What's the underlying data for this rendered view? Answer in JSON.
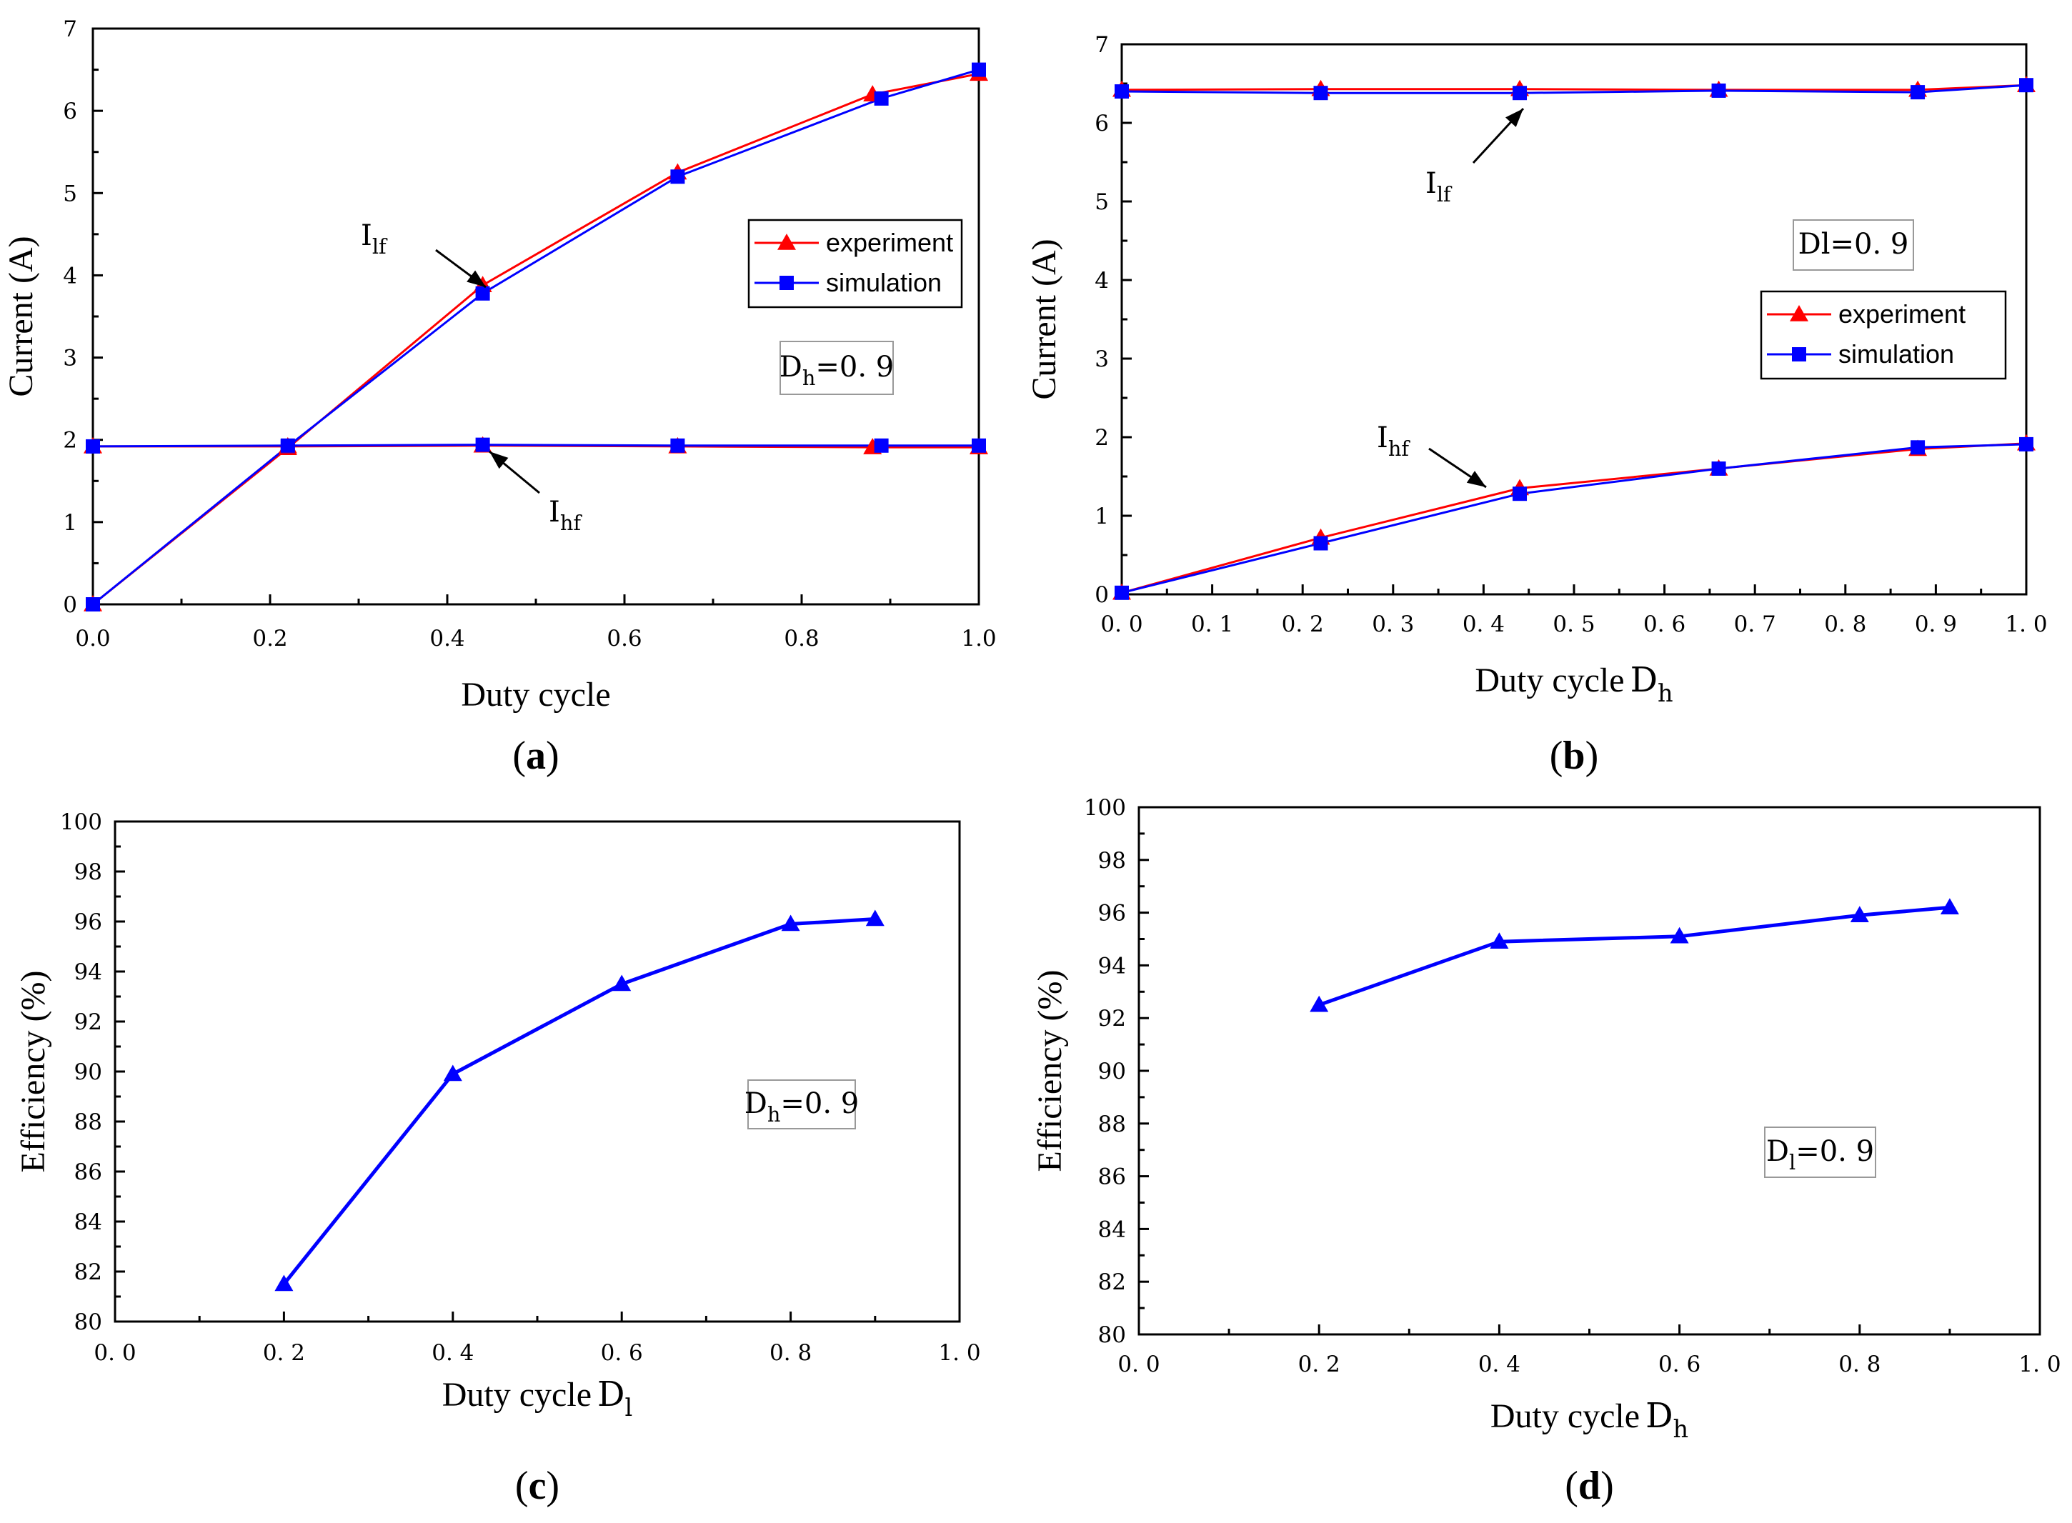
{
  "figure": {
    "panel_labels": [
      "a",
      "b",
      "c",
      "d"
    ]
  },
  "colors": {
    "experiment": "#ff0000",
    "simulation": "#0000ff",
    "efficiency": "#0000ff"
  },
  "chart_data": [
    {
      "id": "a",
      "type": "line",
      "xlabel": "Duty cycle",
      "ylabel": "Current (A)",
      "xlim": [
        0,
        1.0
      ],
      "ylim": [
        0,
        7
      ],
      "xticks": [
        "0.0",
        "0.2",
        "0.4",
        "0.6",
        "0.8",
        "1.0"
      ],
      "xtick_values": [
        0,
        0.2,
        0.4,
        0.6,
        0.8,
        1.0
      ],
      "yticks": [
        "0",
        "1",
        "2",
        "3",
        "4",
        "5",
        "6",
        "7"
      ],
      "ytick_values": [
        0,
        1,
        2,
        3,
        4,
        5,
        6,
        7
      ],
      "legend": {
        "position": "upper-right",
        "entries": [
          "experiment",
          "simulation"
        ]
      },
      "note": {
        "main": "D",
        "sub": "h",
        "rest": "=0. 9"
      },
      "annotations": [
        {
          "main": "I",
          "sub": "lf"
        },
        {
          "main": "I",
          "sub": "hf"
        }
      ],
      "series": [
        {
          "name": "experiment I_lf",
          "kind": "experiment",
          "x": [
            0,
            0.22,
            0.44,
            0.66,
            0.88,
            1.0
          ],
          "y": [
            0,
            1.9,
            3.88,
            5.25,
            6.2,
            6.45
          ]
        },
        {
          "name": "simulation I_lf",
          "kind": "simulation",
          "x": [
            0,
            0.22,
            0.44,
            0.66,
            0.89,
            1.0
          ],
          "y": [
            0,
            1.92,
            3.78,
            5.2,
            6.15,
            6.5
          ]
        },
        {
          "name": "experiment I_hf",
          "kind": "experiment",
          "x": [
            0,
            0.22,
            0.44,
            0.66,
            0.88,
            1.0
          ],
          "y": [
            1.92,
            1.92,
            1.93,
            1.92,
            1.91,
            1.91
          ]
        },
        {
          "name": "simulation I_hf",
          "kind": "simulation",
          "x": [
            0,
            0.22,
            0.44,
            0.66,
            0.89,
            1.0
          ],
          "y": [
            1.92,
            1.93,
            1.94,
            1.93,
            1.93,
            1.93
          ]
        }
      ]
    },
    {
      "id": "b",
      "type": "line",
      "xlabel": "Duty cycle",
      "xlabel_var": {
        "main": "D",
        "sub": "h"
      },
      "ylabel": "Current (A)",
      "xlim": [
        0,
        1.0
      ],
      "ylim": [
        0,
        7
      ],
      "xticks": [
        "0. 0",
        "0. 1",
        "0. 2",
        "0. 3",
        "0. 4",
        "0. 5",
        "0. 6",
        "0. 7",
        "0. 8",
        "0. 9",
        "1. 0"
      ],
      "xtick_values": [
        0,
        0.1,
        0.2,
        0.3,
        0.4,
        0.5,
        0.6,
        0.7,
        0.8,
        0.9,
        1.0
      ],
      "yticks": [
        "0",
        "1",
        "2",
        "3",
        "4",
        "5",
        "6",
        "7"
      ],
      "ytick_values": [
        0,
        1,
        2,
        3,
        4,
        5,
        6,
        7
      ],
      "legend": {
        "position": "center-right",
        "entries": [
          "experiment",
          "simulation"
        ]
      },
      "note": {
        "main": "Dl=0. 9",
        "sub": "",
        "rest": ""
      },
      "annotations": [
        {
          "main": "I",
          "sub": "lf"
        },
        {
          "main": "I",
          "sub": "hf"
        }
      ],
      "series": [
        {
          "name": "experiment I_lf",
          "kind": "experiment",
          "x": [
            0,
            0.22,
            0.44,
            0.66,
            0.88,
            1.0
          ],
          "y": [
            6.42,
            6.43,
            6.43,
            6.42,
            6.42,
            6.48
          ]
        },
        {
          "name": "simulation I_lf",
          "kind": "simulation",
          "x": [
            0,
            0.22,
            0.44,
            0.66,
            0.88,
            1.0
          ],
          "y": [
            6.4,
            6.38,
            6.38,
            6.41,
            6.39,
            6.48
          ]
        },
        {
          "name": "experiment I_hf",
          "kind": "experiment",
          "x": [
            0,
            0.22,
            0.44,
            0.66,
            0.88,
            1.0
          ],
          "y": [
            0.02,
            0.72,
            1.35,
            1.6,
            1.85,
            1.92
          ]
        },
        {
          "name": "simulation I_hf",
          "kind": "simulation",
          "x": [
            0,
            0.22,
            0.44,
            0.66,
            0.88,
            1.0
          ],
          "y": [
            0.02,
            0.65,
            1.28,
            1.6,
            1.87,
            1.91
          ]
        }
      ]
    },
    {
      "id": "c",
      "type": "line",
      "xlabel": "Duty cycle",
      "xlabel_var": {
        "main": "D",
        "sub": "l"
      },
      "ylabel": "Efficiency (%)",
      "xlim": [
        0,
        1.0
      ],
      "ylim": [
        80,
        100
      ],
      "xticks": [
        "0. 0",
        "0. 2",
        "0. 4",
        "0. 6",
        "0. 8",
        "1. 0"
      ],
      "xtick_values": [
        0,
        0.2,
        0.4,
        0.6,
        0.8,
        1.0
      ],
      "yticks": [
        "80",
        "82",
        "84",
        "86",
        "88",
        "90",
        "92",
        "94",
        "96",
        "98",
        "100"
      ],
      "ytick_values": [
        80,
        82,
        84,
        86,
        88,
        90,
        92,
        94,
        96,
        98,
        100
      ],
      "note": {
        "main": "D",
        "sub": "h",
        "rest": "=0. 9"
      },
      "series": [
        {
          "name": "efficiency",
          "kind": "efficiency",
          "x": [
            0.2,
            0.4,
            0.6,
            0.8,
            0.9
          ],
          "y": [
            81.5,
            89.9,
            93.5,
            95.9,
            96.1
          ]
        }
      ]
    },
    {
      "id": "d",
      "type": "line",
      "xlabel": "Duty cycle",
      "xlabel_var": {
        "main": "D",
        "sub": "h"
      },
      "ylabel": "Efficiency (%)",
      "xlim": [
        0,
        1.0
      ],
      "ylim": [
        80,
        100
      ],
      "xticks": [
        "0. 0",
        "0. 2",
        "0. 4",
        "0. 6",
        "0. 8",
        "1. 0"
      ],
      "xtick_values": [
        0,
        0.2,
        0.4,
        0.6,
        0.8,
        1.0
      ],
      "yticks": [
        "80",
        "82",
        "84",
        "86",
        "88",
        "90",
        "92",
        "94",
        "96",
        "98",
        "100"
      ],
      "ytick_values": [
        80,
        82,
        84,
        86,
        88,
        90,
        92,
        94,
        96,
        98,
        100
      ],
      "note": {
        "main": "D",
        "sub": "l",
        "rest": "=0. 9"
      },
      "series": [
        {
          "name": "efficiency",
          "kind": "efficiency",
          "x": [
            0.2,
            0.4,
            0.6,
            0.8,
            0.9
          ],
          "y": [
            92.5,
            94.9,
            95.1,
            95.9,
            96.2
          ]
        }
      ]
    }
  ]
}
